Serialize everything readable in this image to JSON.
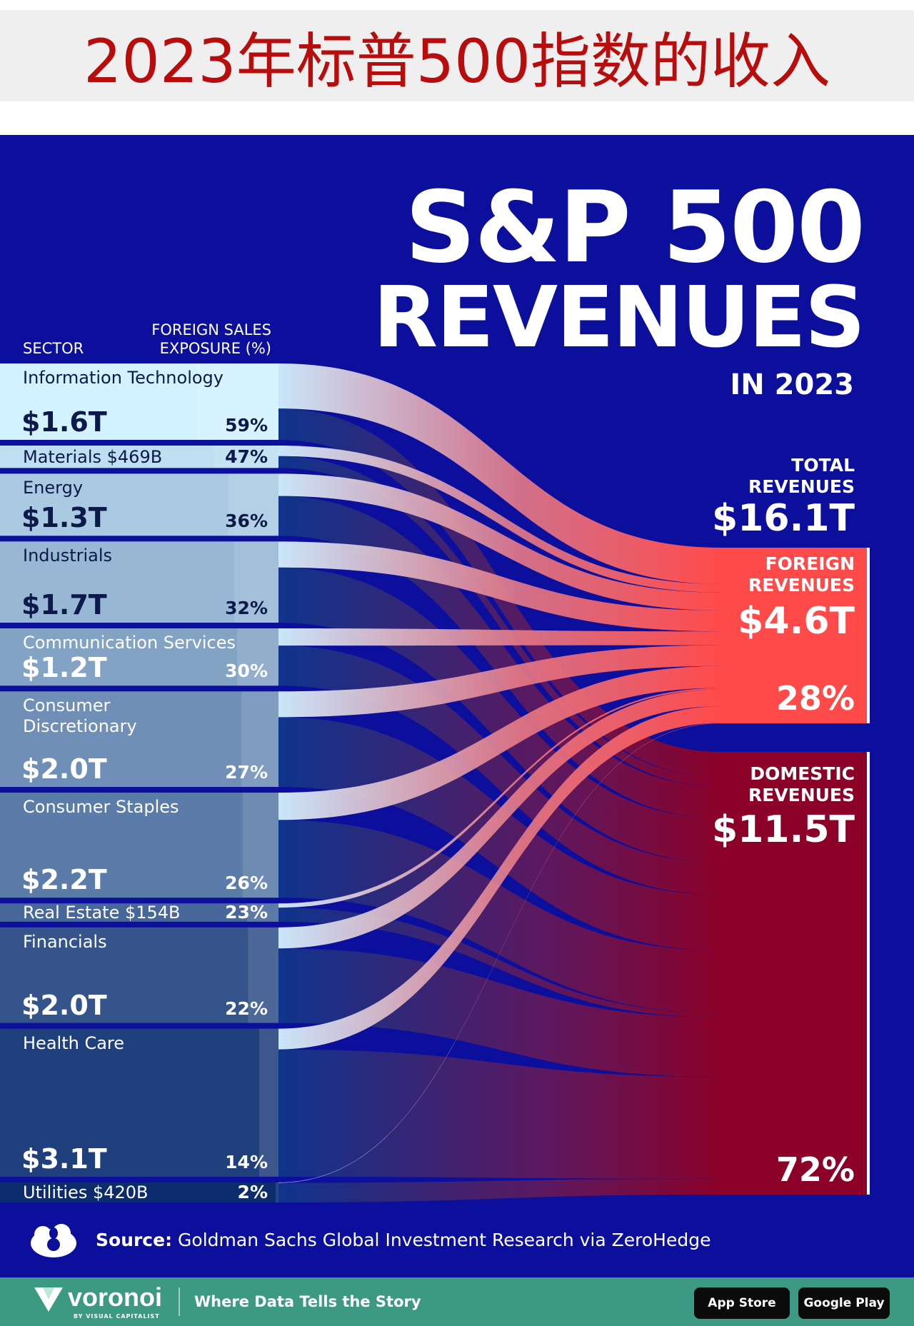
{
  "banner": {
    "title": "2023年标普500指数的收入"
  },
  "poster": {
    "title_line1": "S&P 500",
    "title_line2": "REVENUES",
    "subtitle": "IN 2023",
    "header_sector": "SECTOR",
    "header_exposure_line1": "FOREIGN SALES",
    "header_exposure_line2": "EXPOSURE (%)"
  },
  "totals": {
    "total_label_line1": "TOTAL",
    "total_label_line2": "REVENUES",
    "total_value": "$16.1T",
    "foreign_label_line1": "FOREIGN",
    "foreign_label_line2": "REVENUES",
    "foreign_value": "$4.6T",
    "foreign_pct": "28%",
    "domestic_label_line1": "DOMESTIC",
    "domestic_label_line2": "REVENUES",
    "domestic_value": "$11.5T",
    "domestic_pct": "72%"
  },
  "chart_data": {
    "type": "sankey",
    "title": "S&P 500 Revenues in 2023",
    "units": "USD trillions",
    "total": 16.1,
    "targets": [
      {
        "name": "Foreign Revenues",
        "value": 4.6,
        "share_pct": 28
      },
      {
        "name": "Domestic Revenues",
        "value": 11.5,
        "share_pct": 72
      }
    ],
    "sectors": [
      {
        "name": "Information Technology",
        "revenue_label": "$1.6T",
        "revenue": 1.6,
        "foreign_pct": 59,
        "foreign_pct_label": "59%"
      },
      {
        "name": "Materials",
        "revenue_label": "$469B",
        "revenue": 0.469,
        "foreign_pct": 47,
        "foreign_pct_label": "47%"
      },
      {
        "name": "Energy",
        "revenue_label": "$1.3T",
        "revenue": 1.3,
        "foreign_pct": 36,
        "foreign_pct_label": "36%"
      },
      {
        "name": "Industrials",
        "revenue_label": "$1.7T",
        "revenue": 1.7,
        "foreign_pct": 32,
        "foreign_pct_label": "32%"
      },
      {
        "name": "Communication Services",
        "revenue_label": "$1.2T",
        "revenue": 1.2,
        "foreign_pct": 30,
        "foreign_pct_label": "30%"
      },
      {
        "name": "Consumer Discretionary",
        "name_lines": [
          "Consumer",
          "Discretionary"
        ],
        "revenue_label": "$2.0T",
        "revenue": 2.0,
        "foreign_pct": 27,
        "foreign_pct_label": "27%"
      },
      {
        "name": "Consumer Staples",
        "revenue_label": "$2.2T",
        "revenue": 2.2,
        "foreign_pct": 26,
        "foreign_pct_label": "26%"
      },
      {
        "name": "Real Estate",
        "revenue_label": "$154B",
        "revenue": 0.154,
        "foreign_pct": 23,
        "foreign_pct_label": "23%"
      },
      {
        "name": "Financials",
        "revenue_label": "$2.0T",
        "revenue": 2.0,
        "foreign_pct": 22,
        "foreign_pct_label": "22%"
      },
      {
        "name": "Health Care",
        "revenue_label": "$3.1T",
        "revenue": 3.1,
        "foreign_pct": 14,
        "foreign_pct_label": "14%"
      },
      {
        "name": "Utilities",
        "revenue_label": "$420B",
        "revenue": 0.42,
        "foreign_pct": 2,
        "foreign_pct_label": "2%"
      }
    ],
    "colors": {
      "background": "#0c0f9b",
      "foreign": "#ff4a4a",
      "domestic": "#8c0128"
    }
  },
  "source": {
    "prefix": "Source:",
    "text": "Goldman Sachs Global Investment Research via ZeroHedge"
  },
  "footer": {
    "brand": "voronoi",
    "brand_sub": "BY VISUAL CAPITALIST",
    "tagline": "Where Data Tells the Story",
    "app_store": "App Store",
    "google_play": "Google Play"
  }
}
